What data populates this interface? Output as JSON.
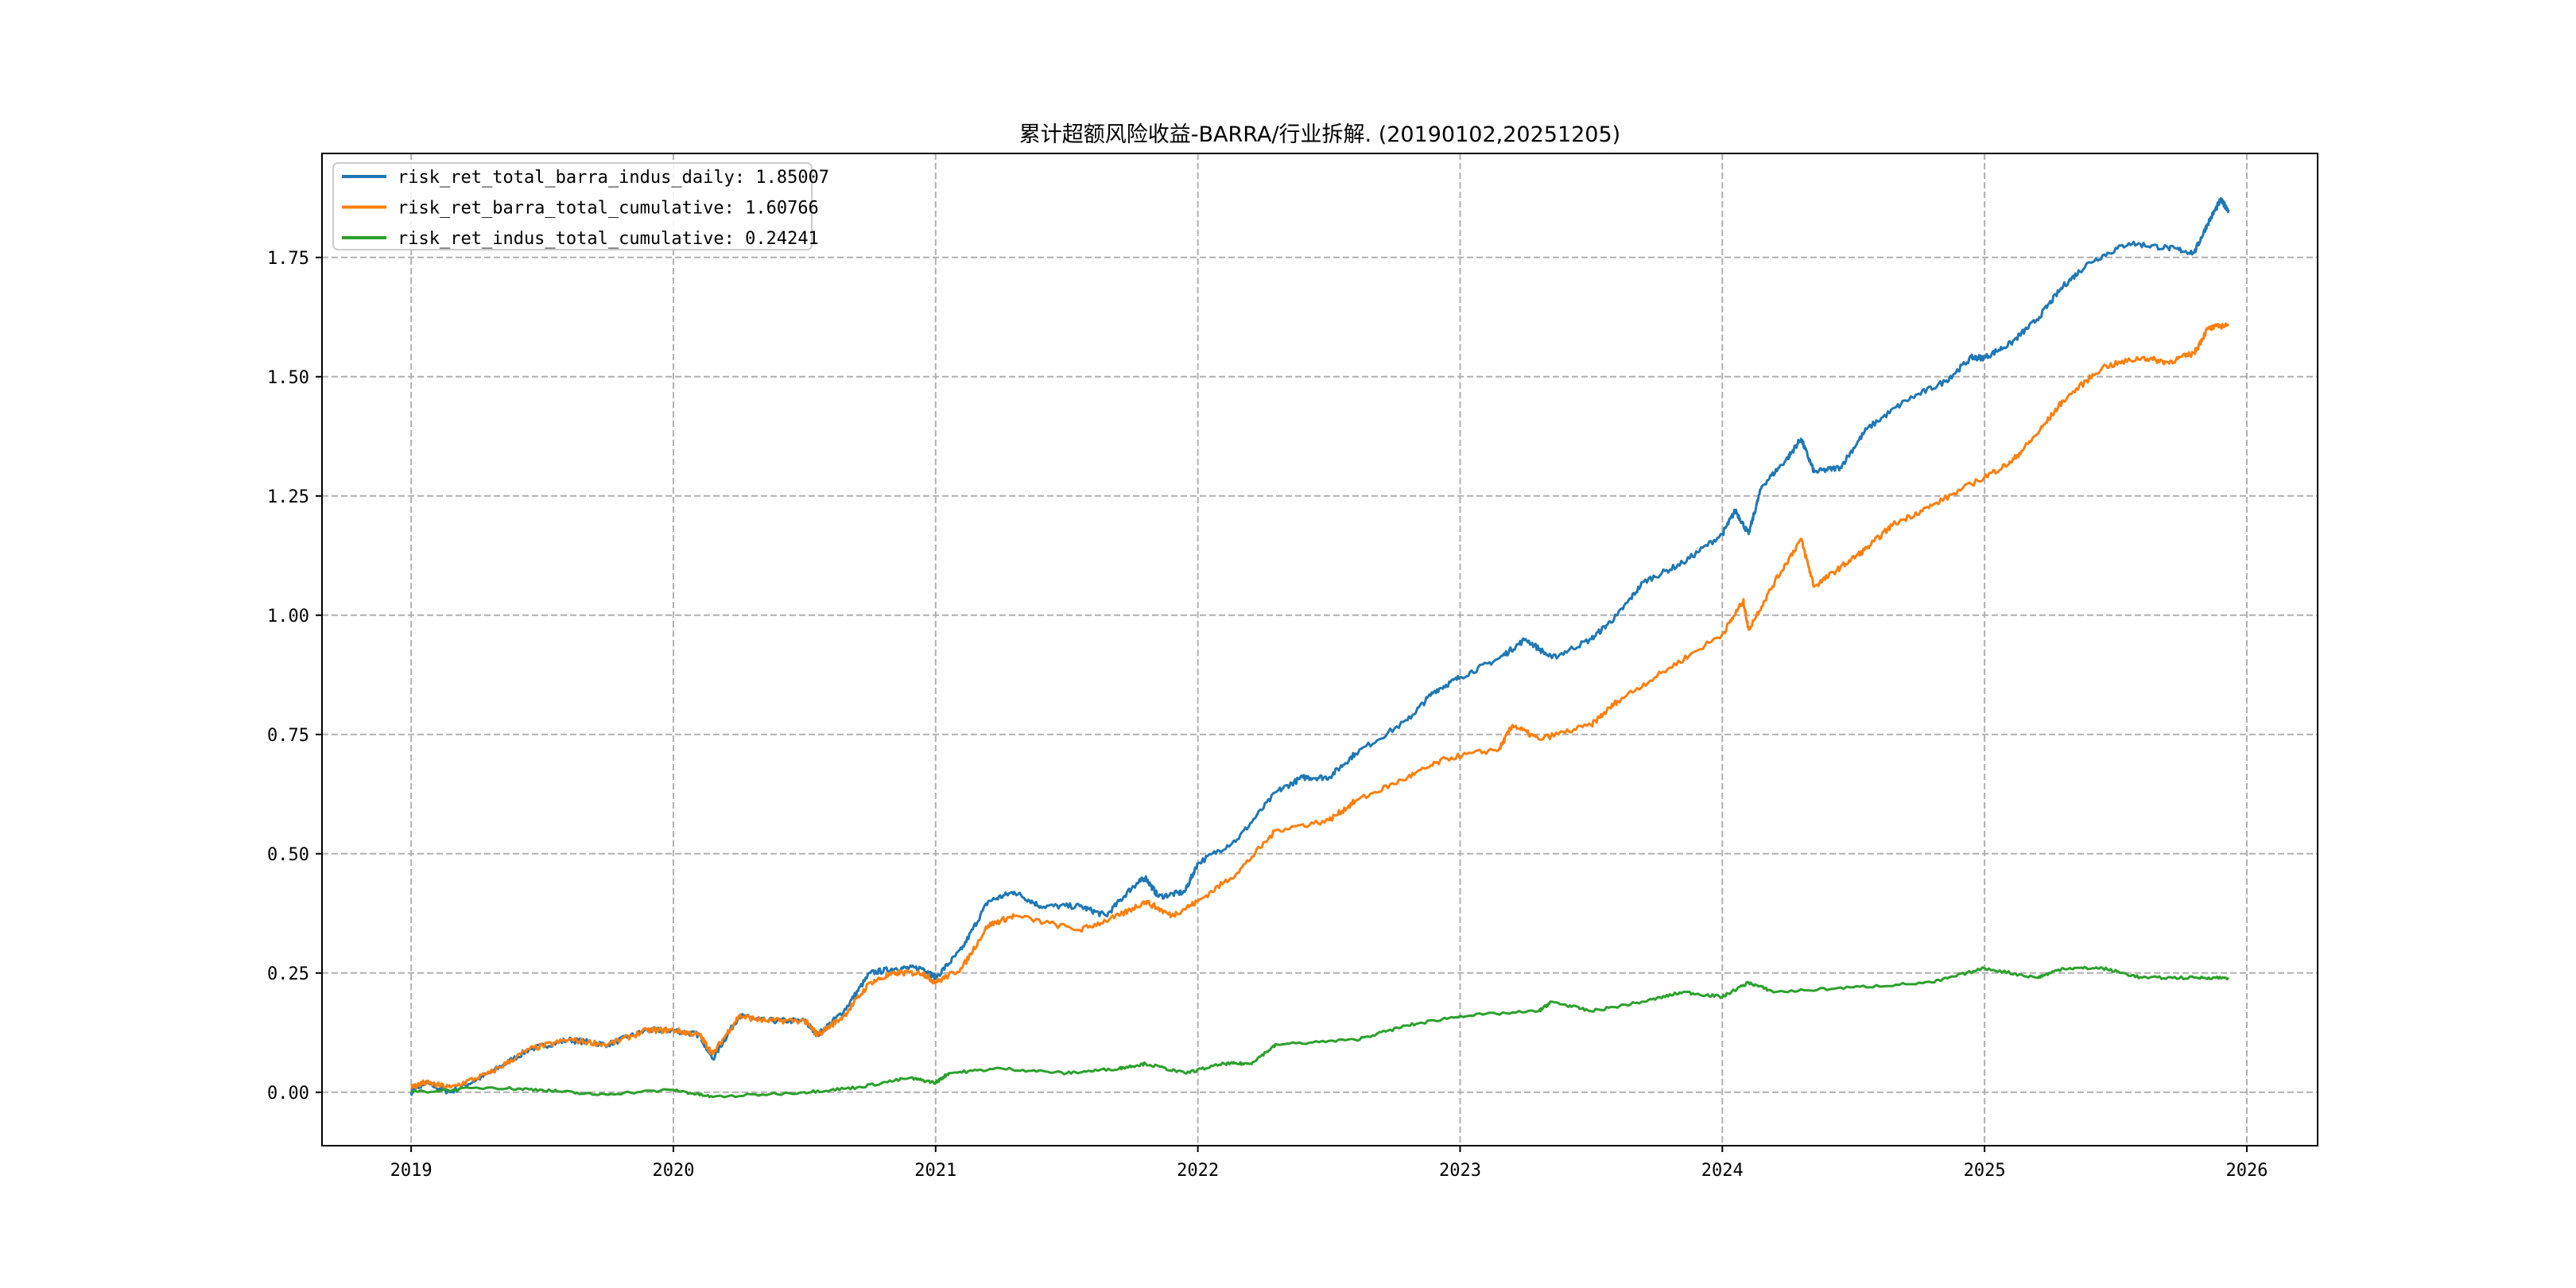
{
  "chart_data": {
    "type": "line",
    "title": "累计超额风险收益-BARRA/行业拆解. (20190102,20251205)",
    "xlabel": "",
    "ylabel": "",
    "xlim": [
      2018.66,
      2026.27
    ],
    "ylim": [
      -0.112,
      1.968
    ],
    "grid": true,
    "legend_position": "top-left",
    "x_ticks": [
      2019,
      2020,
      2021,
      2022,
      2023,
      2024,
      2025,
      2026
    ],
    "x_tick_labels": [
      "2019",
      "2020",
      "2021",
      "2022",
      "2023",
      "2024",
      "2025",
      "2026"
    ],
    "y_ticks": [
      0,
      0.25,
      0.5,
      0.75,
      1.0,
      1.25,
      1.5,
      1.75
    ],
    "y_tick_labels": [
      "0.00",
      "0.25",
      "0.50",
      "0.75",
      "1.00",
      "1.25",
      "1.50",
      "1.75"
    ],
    "series": [
      {
        "name": "risk_ret_total_barra_indus_daily: 1.85007",
        "color": "#1f77b4",
        "x": [
          2019.0,
          2019.05,
          2019.15,
          2019.3,
          2019.45,
          2019.6,
          2019.75,
          2019.9,
          2020.0,
          2020.1,
          2020.15,
          2020.25,
          2020.35,
          2020.5,
          2020.55,
          2020.65,
          2020.75,
          2020.85,
          2020.95,
          2021.0,
          2021.1,
          2021.2,
          2021.3,
          2021.4,
          2021.55,
          2021.65,
          2021.75,
          2021.8,
          2021.85,
          2021.95,
          2022.0,
          2022.15,
          2022.3,
          2022.4,
          2022.5,
          2022.6,
          2022.8,
          2022.9,
          2023.0,
          2023.15,
          2023.25,
          2023.35,
          2023.5,
          2023.6,
          2023.7,
          2023.85,
          2024.0,
          2024.05,
          2024.1,
          2024.15,
          2024.25,
          2024.3,
          2024.35,
          2024.45,
          2024.55,
          2024.7,
          2024.85,
          2024.95,
          2025.0,
          2025.1,
          2025.2,
          2025.3,
          2025.4,
          2025.55,
          2025.7,
          2025.8,
          2025.85,
          2025.9,
          2025.93
        ],
        "values": [
          0,
          0.02,
          0,
          0.04,
          0.09,
          0.11,
          0.1,
          0.13,
          0.13,
          0.12,
          0.07,
          0.16,
          0.15,
          0.15,
          0.12,
          0.17,
          0.25,
          0.26,
          0.26,
          0.24,
          0.3,
          0.4,
          0.42,
          0.39,
          0.39,
          0.37,
          0.43,
          0.45,
          0.41,
          0.42,
          0.48,
          0.53,
          0.63,
          0.66,
          0.66,
          0.71,
          0.78,
          0.84,
          0.87,
          0.91,
          0.95,
          0.91,
          0.95,
          1.0,
          1.07,
          1.11,
          1.17,
          1.22,
          1.17,
          1.27,
          1.33,
          1.37,
          1.3,
          1.31,
          1.39,
          1.45,
          1.49,
          1.54,
          1.54,
          1.57,
          1.62,
          1.69,
          1.74,
          1.78,
          1.77,
          1.76,
          1.82,
          1.87,
          1.85
        ]
      },
      {
        "name": "risk_ret_barra_total_cumulative: 1.60766",
        "color": "#ff7f0e",
        "x": [
          2019.0,
          2019.05,
          2019.15,
          2019.3,
          2019.45,
          2019.6,
          2019.75,
          2019.9,
          2020.0,
          2020.1,
          2020.15,
          2020.25,
          2020.35,
          2020.5,
          2020.55,
          2020.65,
          2020.75,
          2020.85,
          2020.95,
          2021.0,
          2021.1,
          2021.2,
          2021.3,
          2021.55,
          2021.7,
          2021.8,
          2021.9,
          2022.0,
          2022.15,
          2022.3,
          2022.5,
          2022.6,
          2022.8,
          2022.95,
          2023.15,
          2023.2,
          2023.3,
          2023.5,
          2023.6,
          2023.8,
          2024.0,
          2024.08,
          2024.1,
          2024.2,
          2024.3,
          2024.35,
          2024.45,
          2024.55,
          2024.65,
          2024.8,
          2025.0,
          2025.1,
          2025.2,
          2025.3,
          2025.45,
          2025.6,
          2025.7,
          2025.8,
          2025.85,
          2025.93
        ],
        "values": [
          0.01,
          0.02,
          0.01,
          0.04,
          0.09,
          0.11,
          0.1,
          0.13,
          0.13,
          0.12,
          0.08,
          0.16,
          0.15,
          0.15,
          0.12,
          0.16,
          0.23,
          0.25,
          0.25,
          0.23,
          0.26,
          0.35,
          0.37,
          0.34,
          0.37,
          0.4,
          0.37,
          0.4,
          0.46,
          0.55,
          0.57,
          0.61,
          0.66,
          0.7,
          0.72,
          0.77,
          0.74,
          0.77,
          0.82,
          0.89,
          0.96,
          1.03,
          0.97,
          1.07,
          1.16,
          1.06,
          1.1,
          1.14,
          1.19,
          1.23,
          1.29,
          1.32,
          1.38,
          1.45,
          1.52,
          1.54,
          1.53,
          1.55,
          1.6,
          1.61
        ]
      },
      {
        "name": "risk_ret_indus_total_cumulative: 0.24241",
        "color": "#2ca02c",
        "x": [
          2019.0,
          2019.3,
          2019.5,
          2019.7,
          2020.0,
          2020.15,
          2020.5,
          2020.7,
          2020.9,
          2021.0,
          2021.05,
          2021.25,
          2021.5,
          2021.7,
          2021.8,
          2021.95,
          2022.1,
          2022.2,
          2022.3,
          2022.6,
          2022.8,
          2023.0,
          2023.3,
          2023.35,
          2023.5,
          2023.7,
          2023.85,
          2024.0,
          2024.1,
          2024.2,
          2024.5,
          2024.8,
          2025.0,
          2025.2,
          2025.3,
          2025.45,
          2025.6,
          2025.8,
          2025.93
        ],
        "values": [
          0,
          0.01,
          0.005,
          -0.005,
          0.005,
          -0.01,
          0,
          0.01,
          0.03,
          0.02,
          0.04,
          0.05,
          0.04,
          0.05,
          0.06,
          0.04,
          0.06,
          0.06,
          0.1,
          0.11,
          0.14,
          0.16,
          0.17,
          0.19,
          0.17,
          0.19,
          0.21,
          0.2,
          0.23,
          0.21,
          0.22,
          0.23,
          0.26,
          0.24,
          0.26,
          0.26,
          0.24,
          0.24,
          0.24
        ]
      }
    ]
  }
}
